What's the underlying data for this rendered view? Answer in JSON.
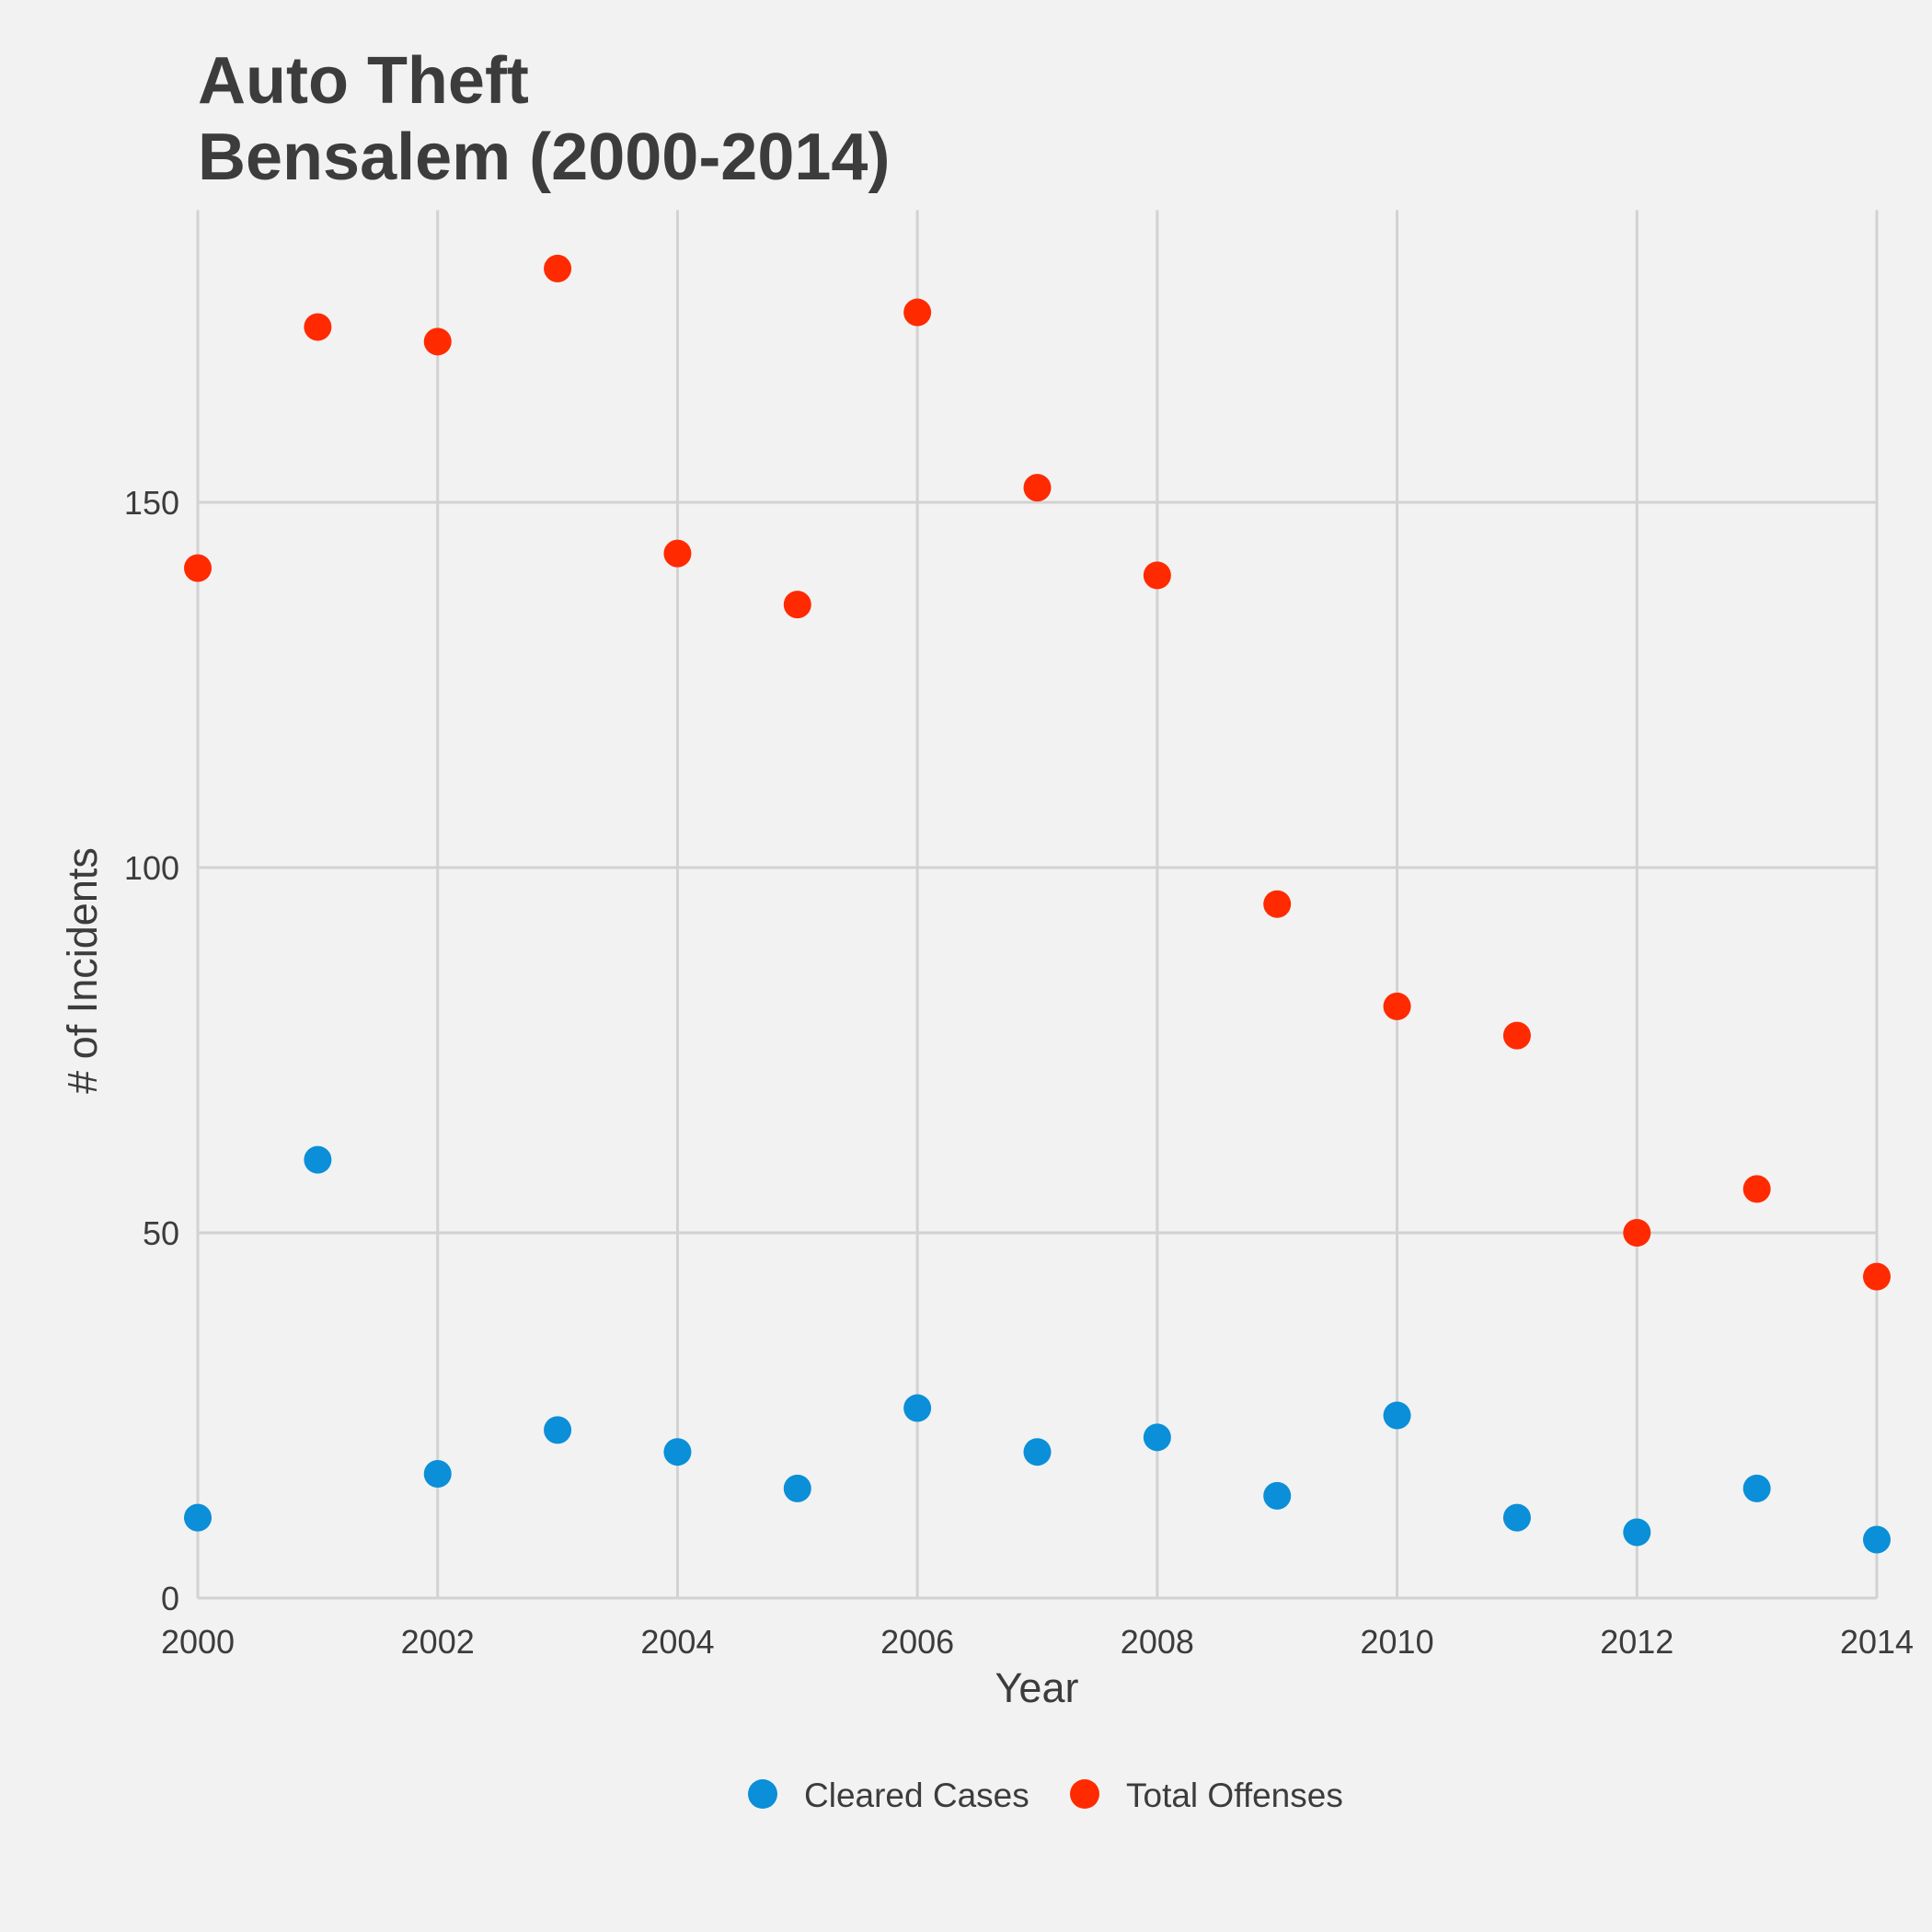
{
  "chart_data": {
    "type": "scatter",
    "title_lines": [
      "Auto Theft",
      "Bensalem (2000-2014)"
    ],
    "xlabel": "Year",
    "ylabel": "# of Incidents",
    "xlim": [
      2000,
      2014
    ],
    "ylim": [
      0,
      190
    ],
    "xticks": [
      "2000",
      "2002",
      "2004",
      "2006",
      "2008",
      "2010",
      "2012",
      "2014"
    ],
    "yticks": [
      "0",
      "50",
      "100",
      "150"
    ],
    "grid": true,
    "legend_position": "bottom",
    "x": [
      2000,
      2001,
      2002,
      2003,
      2004,
      2005,
      2006,
      2007,
      2008,
      2009,
      2010,
      2011,
      2012,
      2013,
      2014
    ],
    "series": [
      {
        "name": "Cleared Cases",
        "color": "#0a8fd8",
        "values": [
          11,
          60,
          17,
          23,
          20,
          15,
          26,
          20,
          22,
          14,
          25,
          11,
          9,
          15,
          8
        ]
      },
      {
        "name": "Total Offenses",
        "color": "#ff2a00",
        "values": [
          141,
          174,
          172,
          182,
          143,
          136,
          176,
          152,
          140,
          95,
          81,
          77,
          50,
          56,
          44
        ]
      }
    ]
  }
}
